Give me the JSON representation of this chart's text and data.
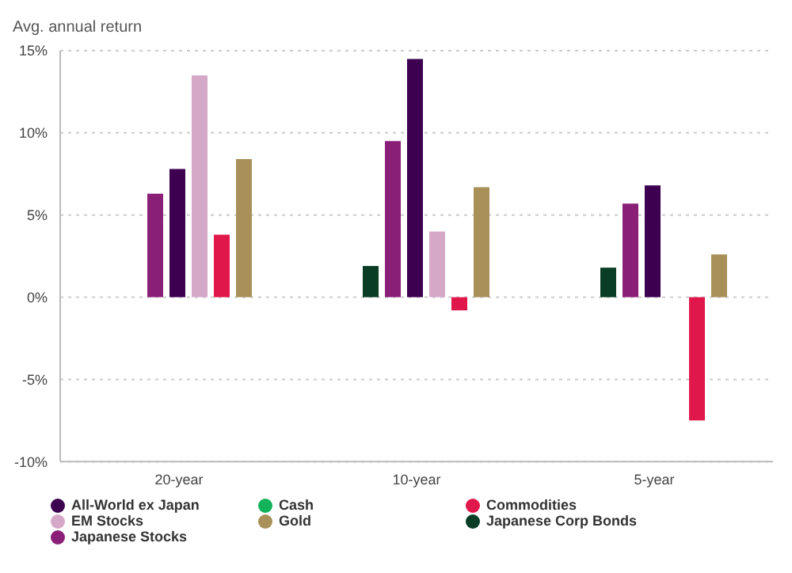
{
  "chart_data": {
    "type": "bar",
    "ylabel": "Avg. annual return",
    "categories": [
      "20-year",
      "10-year",
      "5-year"
    ],
    "series": [
      {
        "name": "Cash",
        "color": "#12b35a",
        "values": [
          null,
          null,
          null
        ]
      },
      {
        "name": "Japanese Corp Bonds",
        "color": "#0a3d26",
        "values": [
          null,
          1.9,
          1.8
        ]
      },
      {
        "name": "Japanese Stocks",
        "color": "#8a1f78",
        "values": [
          6.3,
          9.5,
          5.7
        ]
      },
      {
        "name": "All-World ex Japan",
        "color": "#3d0050",
        "values": [
          7.8,
          14.5,
          6.8
        ]
      },
      {
        "name": "EM Stocks",
        "color": "#d6a8c8",
        "values": [
          13.5,
          4.0,
          null
        ]
      },
      {
        "name": "Commodities",
        "color": "#e0174a",
        "values": [
          3.8,
          -0.8,
          -7.5
        ]
      },
      {
        "name": "Gold",
        "color": "#a89058",
        "values": [
          8.4,
          6.7,
          2.6
        ]
      }
    ],
    "ylim": [
      -10,
      15
    ],
    "yticks": [
      {
        "value": -10,
        "label": "-10%"
      },
      {
        "value": -5,
        "label": "-5%"
      },
      {
        "value": 0,
        "label": "0%"
      },
      {
        "value": 5,
        "label": "5%"
      },
      {
        "value": 10,
        "label": "10%"
      },
      {
        "value": 15,
        "label": "15%"
      }
    ],
    "grid": "y",
    "legend": "bottom"
  }
}
